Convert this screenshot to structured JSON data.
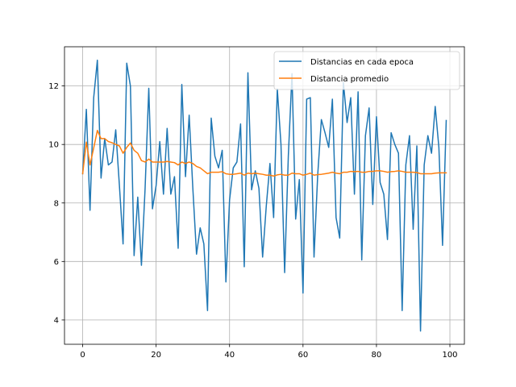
{
  "chart_data": {
    "type": "line",
    "title": "",
    "xlabel": "",
    "ylabel": "",
    "xlim": [
      -4.95,
      103.95
    ],
    "ylim": [
      3.17,
      13.34
    ],
    "xticks": [
      0,
      20,
      40,
      60,
      80,
      100
    ],
    "yticks": [
      4,
      6,
      8,
      10,
      12
    ],
    "grid": true,
    "legend_position": "top-right",
    "series": [
      {
        "name": "Distancias en cada epoca",
        "color": "#1f77b4",
        "x": [
          0,
          1,
          2,
          3,
          4,
          5,
          6,
          7,
          8,
          9,
          10,
          11,
          12,
          13,
          14,
          15,
          16,
          17,
          18,
          19,
          20,
          21,
          22,
          23,
          24,
          25,
          26,
          27,
          28,
          29,
          30,
          31,
          32,
          33,
          34,
          35,
          36,
          37,
          38,
          39,
          40,
          41,
          42,
          43,
          44,
          45,
          46,
          47,
          48,
          49,
          50,
          51,
          52,
          53,
          54,
          55,
          56,
          57,
          58,
          59,
          60,
          61,
          62,
          63,
          64,
          65,
          66,
          67,
          68,
          69,
          70,
          71,
          72,
          73,
          74,
          75,
          76,
          77,
          78,
          79,
          80,
          81,
          82,
          83,
          84,
          85,
          86,
          87,
          88,
          89,
          90,
          91,
          92,
          93,
          94,
          95,
          96,
          97,
          98,
          99
        ],
        "values": [
          9.0,
          11.2,
          7.75,
          11.6,
          12.88,
          8.85,
          10.2,
          9.3,
          9.4,
          10.5,
          8.6,
          6.6,
          12.78,
          12.0,
          6.2,
          8.2,
          5.87,
          8.5,
          11.92,
          7.8,
          8.6,
          10.1,
          8.3,
          10.55,
          8.3,
          8.9,
          6.45,
          12.05,
          8.9,
          11.0,
          8.5,
          6.25,
          7.15,
          6.6,
          4.32,
          10.9,
          9.6,
          9.2,
          9.8,
          5.3,
          8.1,
          9.2,
          9.4,
          10.7,
          5.82,
          12.45,
          8.45,
          9.1,
          8.5,
          6.15,
          7.9,
          9.35,
          7.5,
          11.9,
          10.0,
          5.62,
          9.6,
          12.42,
          7.45,
          8.8,
          4.92,
          11.55,
          11.6,
          6.15,
          8.95,
          10.85,
          10.4,
          9.9,
          11.55,
          7.5,
          6.8,
          12.12,
          10.75,
          11.6,
          8.3,
          11.8,
          6.05,
          10.3,
          11.25,
          7.95,
          10.95,
          8.7,
          8.3,
          6.75,
          10.4,
          10.0,
          9.7,
          4.32,
          9.3,
          10.3,
          7.1,
          9.95,
          3.62,
          9.3,
          10.3,
          9.7,
          11.3,
          9.9,
          6.55,
          10.82
        ]
      },
      {
        "name": "Distancia promedio",
        "color": "#ff7f0e",
        "x": [
          0,
          1,
          2,
          3,
          4,
          5,
          6,
          7,
          8,
          9,
          10,
          11,
          12,
          13,
          14,
          15,
          16,
          17,
          18,
          19,
          20,
          21,
          22,
          23,
          24,
          25,
          26,
          27,
          28,
          29,
          30,
          31,
          32,
          33,
          34,
          35,
          36,
          37,
          38,
          39,
          40,
          41,
          42,
          43,
          44,
          45,
          46,
          47,
          48,
          49,
          50,
          51,
          52,
          53,
          54,
          55,
          56,
          57,
          58,
          59,
          60,
          61,
          62,
          63,
          64,
          65,
          66,
          67,
          68,
          69,
          70,
          71,
          72,
          73,
          74,
          75,
          76,
          77,
          78,
          79,
          80,
          81,
          82,
          83,
          84,
          85,
          86,
          87,
          88,
          89,
          90,
          91,
          92,
          93,
          94,
          95,
          96,
          97,
          98,
          99
        ],
        "values": [
          9.0,
          10.08,
          9.3,
          9.88,
          10.48,
          10.2,
          10.2,
          10.1,
          10.06,
          10.0,
          9.95,
          9.7,
          9.9,
          10.05,
          9.8,
          9.7,
          9.45,
          9.4,
          9.5,
          9.4,
          9.4,
          9.4,
          9.4,
          9.42,
          9.4,
          9.38,
          9.3,
          9.4,
          9.35,
          9.4,
          9.35,
          9.25,
          9.2,
          9.1,
          9.0,
          9.05,
          9.05,
          9.05,
          9.07,
          9.0,
          8.98,
          8.98,
          9.0,
          9.02,
          8.95,
          9.02,
          9.0,
          9.02,
          9.0,
          8.98,
          8.95,
          8.95,
          8.92,
          8.96,
          8.98,
          8.95,
          8.95,
          9.02,
          9.0,
          9.0,
          8.95,
          8.98,
          9.02,
          8.95,
          8.97,
          8.98,
          9.0,
          9.02,
          9.05,
          9.02,
          9.0,
          9.05,
          9.05,
          9.08,
          9.07,
          9.08,
          9.05,
          9.05,
          9.08,
          9.08,
          9.1,
          9.1,
          9.08,
          9.05,
          9.07,
          9.08,
          9.1,
          9.08,
          9.05,
          9.05,
          9.05,
          9.04,
          9.0,
          9.0,
          9.0,
          9.0,
          9.02,
          9.03,
          9.03,
          9.03
        ]
      }
    ]
  }
}
